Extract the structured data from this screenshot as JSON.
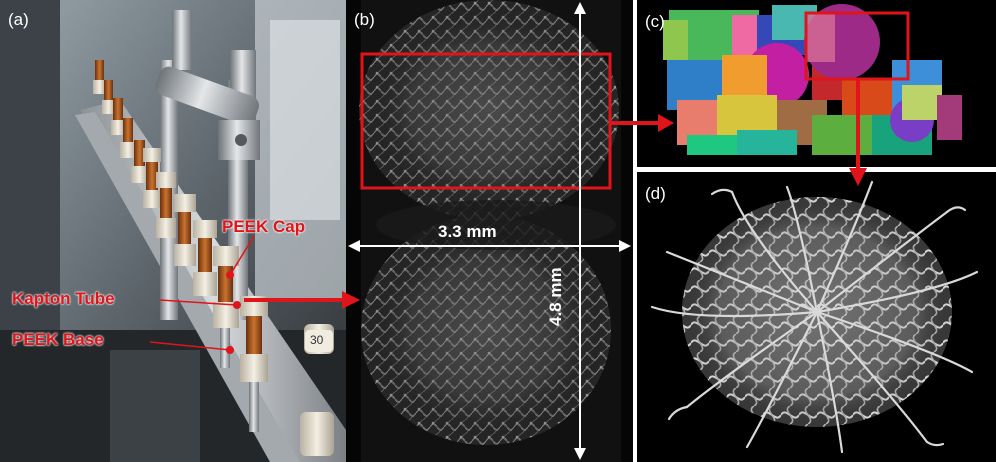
{
  "panels": {
    "a": {
      "label": "(a)"
    },
    "b": {
      "label": "(b)"
    },
    "c": {
      "label": "(c)"
    },
    "d": {
      "label": "(d)"
    }
  },
  "annotations": {
    "peek_cap": "PEEK Cap",
    "kapton_tube": "Kapton Tube",
    "peek_base": "PEEK Base",
    "width_dim": "3.3 mm",
    "height_dim": "4.8 mm",
    "tube_number": "30"
  },
  "colors": {
    "highlight": "#e0141b",
    "dimension_lines": "#ffffff",
    "kapton": "#a8541b",
    "peek": "#e8e2d4"
  }
}
